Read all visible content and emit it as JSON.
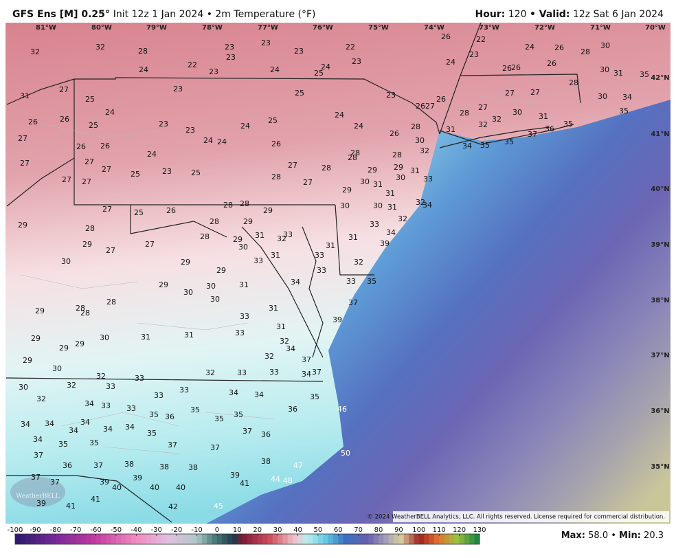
{
  "header": {
    "title": "GFS Ens [M] 0.25",
    "degree": "°",
    "subtitle": "Init 12z 1 Jan 2024 • 2m Temperature (°F)",
    "hour_label": "Hour:",
    "hour": "120",
    "valid_label": "• Valid:",
    "valid": "12z Sat 6 Jan 2024"
  },
  "map": {
    "longitudes": [
      "81°W",
      "80°W",
      "79°W",
      "78°W",
      "77°W",
      "76°W",
      "75°W",
      "74°W",
      "73°W",
      "72°W",
      "71°W",
      "70°W"
    ],
    "latitudes": [
      "42°N",
      "41°N",
      "40°N",
      "39°N",
      "38°N",
      "37°N",
      "36°N",
      "35°N"
    ],
    "station_values": [
      32,
      32,
      28,
      23,
      23,
      23,
      23,
      22,
      23,
      26,
      22,
      23,
      24,
      26,
      28,
      30,
      24,
      22,
      23,
      24,
      25,
      24,
      24,
      26,
      26,
      26,
      30,
      31,
      35,
      27,
      31,
      25,
      23,
      25,
      23,
      27,
      27,
      28,
      30,
      24,
      26,
      26,
      25,
      23,
      23,
      24,
      25,
      24,
      24,
      26,
      27,
      26,
      28,
      27,
      30,
      31,
      32,
      32,
      34,
      35,
      27,
      26,
      26,
      24,
      24,
      26,
      26,
      28,
      30,
      31,
      32,
      28,
      28,
      24,
      27,
      27,
      27,
      23,
      25,
      25,
      27,
      28,
      28,
      29,
      29,
      31,
      30,
      33,
      27,
      27,
      28,
      27,
      29,
      30,
      31,
      31,
      34,
      35,
      35,
      37,
      36,
      35,
      27,
      26,
      28,
      28,
      29,
      25,
      29,
      28,
      28,
      28,
      29,
      31,
      32,
      33,
      29,
      30,
      30,
      30,
      31,
      32,
      34,
      32,
      34,
      39,
      33,
      31,
      31,
      32,
      31,
      33,
      33,
      33,
      34,
      33,
      35,
      29,
      27,
      27,
      30,
      29,
      29,
      29,
      30,
      30,
      31,
      30,
      28,
      28,
      28,
      29,
      31,
      33,
      37,
      39,
      31,
      33,
      30,
      31,
      31,
      29,
      29,
      29,
      32,
      34,
      32,
      37,
      29,
      30,
      32,
      33,
      33,
      34,
      37,
      32,
      33,
      32,
      33,
      30,
      32,
      33,
      33,
      34,
      34,
      35,
      34,
      33,
      33,
      35,
      36,
      35,
      35,
      35,
      36,
      46,
      34,
      34,
      34,
      34,
      34,
      34,
      35,
      37,
      36,
      34,
      35,
      35,
      37,
      37,
      37,
      50,
      37,
      36,
      38,
      38,
      38,
      38,
      47,
      37,
      37,
      39,
      39,
      39,
      41,
      44,
      48,
      40,
      40,
      40,
      39,
      41,
      41,
      42,
      45
    ],
    "logo": "WeatherBELL",
    "copyright": "© 2024 WeatherBELL Analytics, LLC. All rights reserved. License required for commercial distribution."
  },
  "colorbar": {
    "lim": [
      -100,
      130
    ],
    "ticks": [
      -100,
      -90,
      -80,
      -70,
      -60,
      -50,
      -40,
      -30,
      -20,
      -10,
      0,
      10,
      20,
      30,
      40,
      50,
      60,
      70,
      80,
      90,
      100,
      110,
      120,
      130
    ]
  },
  "stats": {
    "max_label": "Max:",
    "max": "58.0",
    "separator": "•",
    "min_label": "Min:",
    "min": "20.3"
  }
}
